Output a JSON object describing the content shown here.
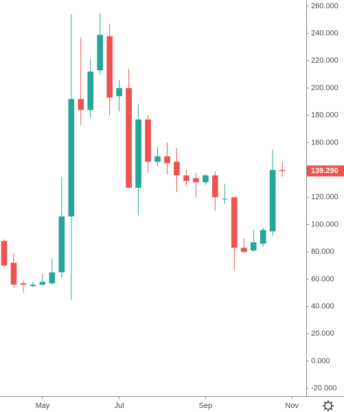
{
  "chart_data": {
    "type": "candlestick",
    "categories": [
      null,
      null,
      null,
      null,
      null,
      null,
      null,
      null,
      null,
      null,
      null,
      null,
      null,
      null,
      null,
      null,
      null,
      null,
      null,
      null,
      null,
      null,
      null,
      null,
      null,
      null,
      null,
      null,
      null,
      null
    ],
    "open": [
      88,
      72,
      57,
      55,
      56,
      57,
      65,
      106,
      192,
      184,
      213,
      238,
      194,
      200,
      127,
      177,
      146,
      150,
      146,
      136,
      134,
      131,
      136,
      119,
      120,
      83,
      81,
      86,
      95,
      140
    ],
    "high": [
      89,
      79,
      59,
      58,
      64,
      75,
      135,
      254,
      237,
      221,
      255,
      247,
      206,
      214,
      188,
      180,
      157,
      160,
      156,
      140,
      138,
      137,
      139,
      130,
      120,
      90,
      96,
      98,
      155,
      146
    ],
    "low": [
      69,
      54,
      50,
      54,
      55,
      56,
      61,
      45,
      173,
      178,
      210,
      180,
      183,
      127,
      107,
      138,
      143,
      137,
      124,
      128,
      120,
      129,
      110,
      115,
      67,
      79,
      80,
      84,
      92,
      135
    ],
    "close": [
      70,
      56,
      56,
      56,
      58,
      65,
      106,
      192,
      184,
      212,
      239,
      193,
      200,
      127,
      177,
      146,
      150,
      145,
      136,
      132,
      131,
      136,
      120,
      119,
      83,
      80,
      87,
      96,
      140,
      139.29
    ],
    "up_color": "#26a69a",
    "down_color": "#ef5350",
    "xlim": [
      -0.43,
      31.5
    ],
    "xticks": [
      {
        "value": 4,
        "label": "May"
      },
      {
        "value": 12,
        "label": "Jul"
      },
      {
        "value": 21,
        "label": "Sep"
      },
      {
        "value": 30,
        "label": "Nov"
      }
    ],
    "ylim": [
      -25.7,
      264.5
    ],
    "yticks": [
      {
        "value": -20,
        "label": "-20.000"
      },
      {
        "value": 0,
        "label": "0.000"
      },
      {
        "value": 20,
        "label": "20.000"
      },
      {
        "value": 40,
        "label": "40.000"
      },
      {
        "value": 60,
        "label": "60.000"
      },
      {
        "value": 80,
        "label": "80.000"
      },
      {
        "value": 100,
        "label": "100.000"
      },
      {
        "value": 120,
        "label": "120.000"
      },
      {
        "value": 140,
        "label": "140.000"
      },
      {
        "value": 160,
        "label": "160.000"
      },
      {
        "value": 180,
        "label": "180.000"
      },
      {
        "value": 200,
        "label": "200.000"
      },
      {
        "value": 220,
        "label": "220.000"
      },
      {
        "value": 240,
        "label": "240.000"
      },
      {
        "value": 260,
        "label": "260.000"
      }
    ],
    "last_price": {
      "value": 139.29,
      "label": "139.290"
    },
    "grid": false
  }
}
